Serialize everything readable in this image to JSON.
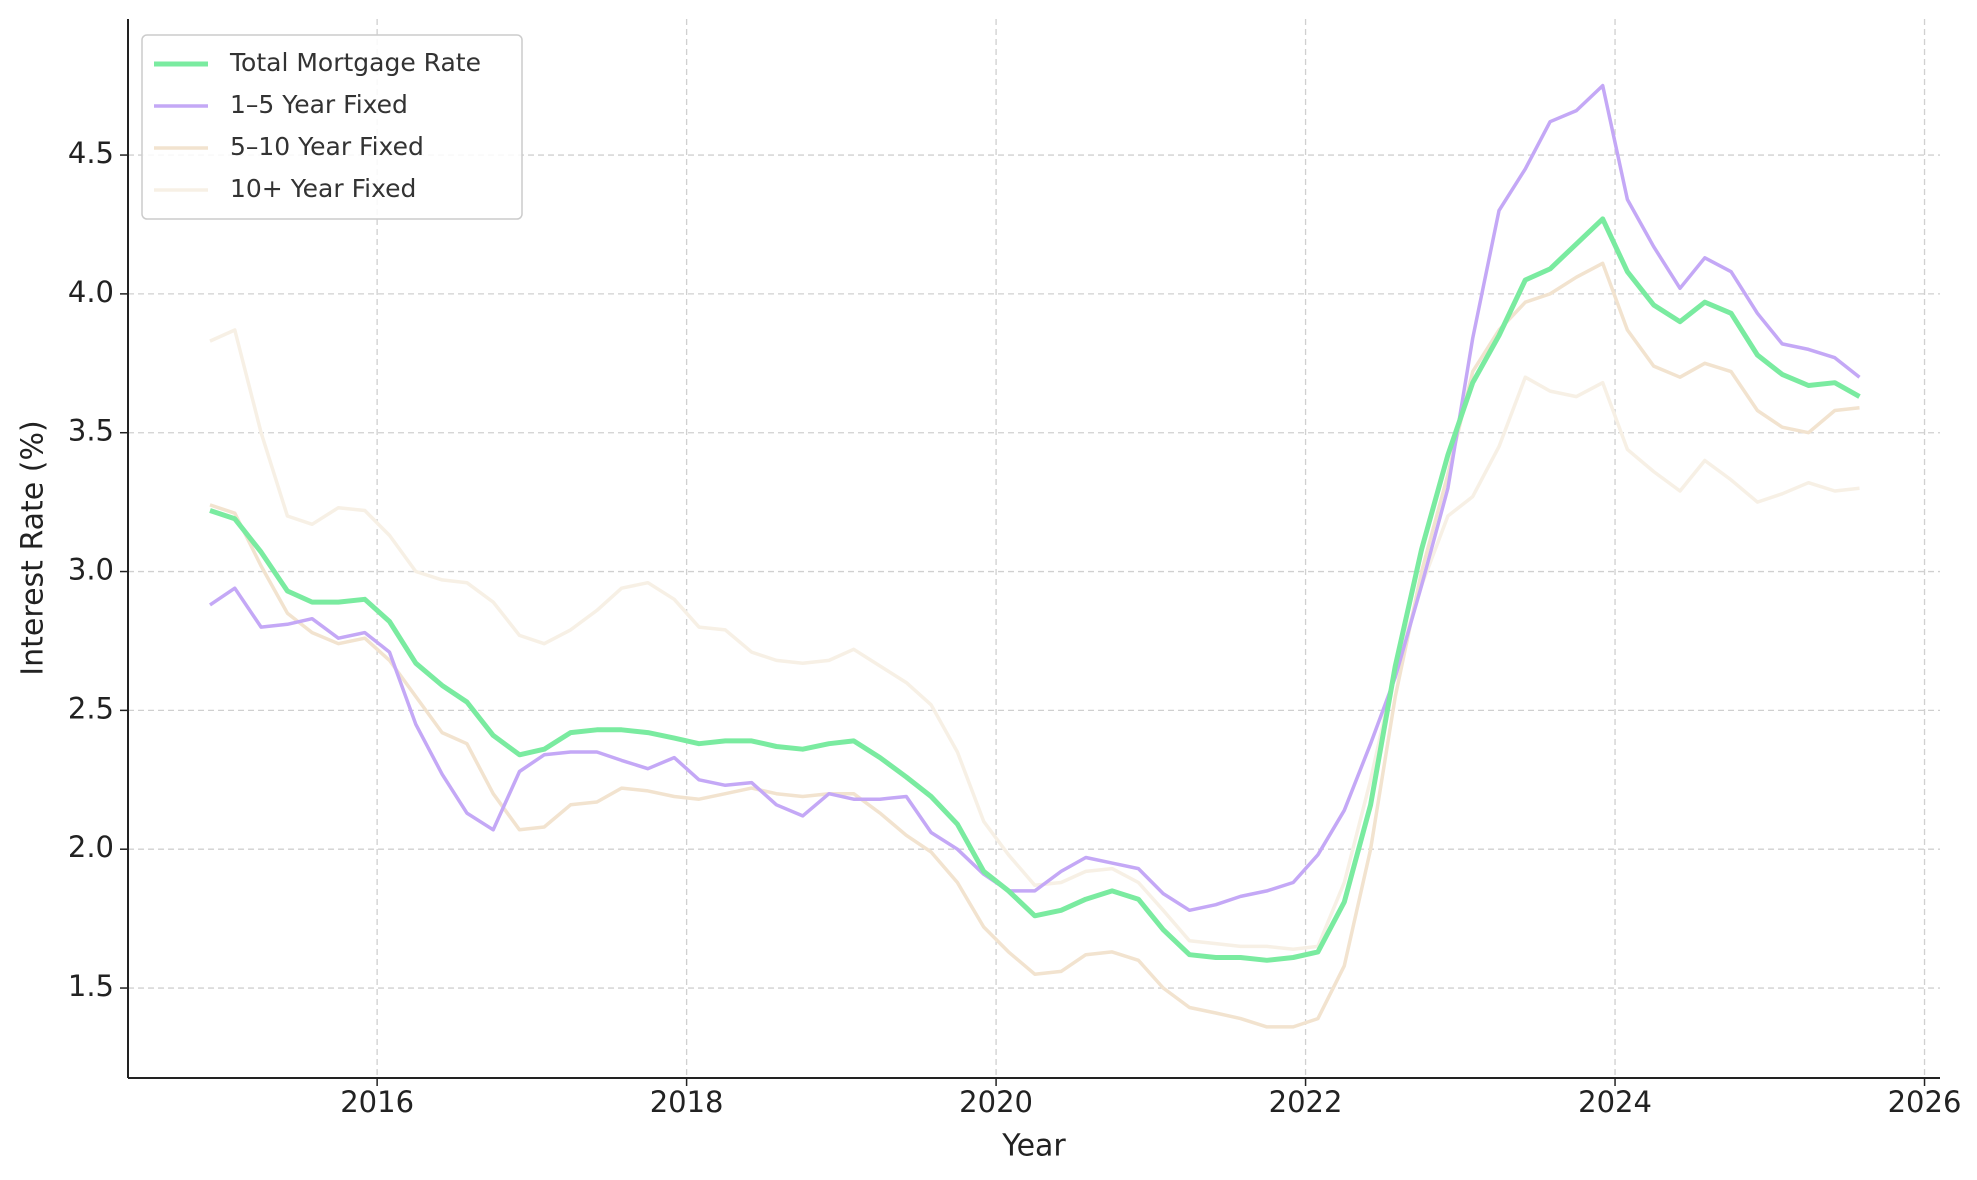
{
  "chart_data": {
    "type": "line",
    "x_label": "Year",
    "y_label": "Interest Rate (%)",
    "x": [
      2014.92,
      2015.08,
      2015.25,
      2015.42,
      2015.58,
      2015.75,
      2015.92,
      2016.08,
      2016.25,
      2016.42,
      2016.58,
      2016.75,
      2016.92,
      2017.08,
      2017.25,
      2017.42,
      2017.58,
      2017.75,
      2017.92,
      2018.08,
      2018.25,
      2018.42,
      2018.58,
      2018.75,
      2018.92,
      2019.08,
      2019.25,
      2019.42,
      2019.58,
      2019.75,
      2019.92,
      2020.08,
      2020.25,
      2020.42,
      2020.58,
      2020.75,
      2020.92,
      2021.08,
      2021.25,
      2021.42,
      2021.58,
      2021.75,
      2021.92,
      2022.08,
      2022.25,
      2022.42,
      2022.58,
      2022.75,
      2022.92,
      2023.08,
      2023.25,
      2023.42,
      2023.58,
      2023.75,
      2023.92,
      2024.08,
      2024.25,
      2024.42,
      2024.58,
      2024.75,
      2024.92,
      2025.08,
      2025.25,
      2025.42,
      2025.58
    ],
    "series": [
      {
        "name": "Total Mortgage Rate",
        "color": "#7aeba0",
        "width": 5,
        "values": [
          3.22,
          3.19,
          3.07,
          2.93,
          2.89,
          2.89,
          2.9,
          2.82,
          2.67,
          2.59,
          2.53,
          2.41,
          2.34,
          2.36,
          2.42,
          2.43,
          2.43,
          2.42,
          2.4,
          2.38,
          2.39,
          2.39,
          2.37,
          2.36,
          2.38,
          2.39,
          2.33,
          2.26,
          2.19,
          2.09,
          1.92,
          1.85,
          1.76,
          1.78,
          1.82,
          1.85,
          1.82,
          1.71,
          1.62,
          1.61,
          1.61,
          1.6,
          1.61,
          1.63,
          1.81,
          2.16,
          2.66,
          3.08,
          3.42,
          3.68,
          3.85,
          4.05,
          4.09,
          4.18,
          4.27,
          4.08,
          3.96,
          3.9,
          3.97,
          3.93,
          3.78,
          3.71,
          3.67,
          3.68,
          3.63
        ]
      },
      {
        "name": "1–5 Year Fixed",
        "color": "#c4a8f6",
        "width": 3.5,
        "values": [
          2.88,
          2.94,
          2.8,
          2.81,
          2.83,
          2.76,
          2.78,
          2.71,
          2.45,
          2.27,
          2.13,
          2.07,
          2.28,
          2.34,
          2.35,
          2.35,
          2.32,
          2.29,
          2.33,
          2.25,
          2.23,
          2.24,
          2.16,
          2.12,
          2.2,
          2.18,
          2.18,
          2.19,
          2.06,
          2.0,
          1.91,
          1.85,
          1.85,
          1.92,
          1.97,
          1.95,
          1.93,
          1.84,
          1.78,
          1.8,
          1.83,
          1.85,
          1.88,
          1.98,
          2.14,
          2.38,
          2.62,
          2.95,
          3.3,
          3.84,
          4.3,
          4.45,
          4.62,
          4.66,
          4.75,
          4.34,
          4.17,
          4.02,
          4.13,
          4.08,
          3.93,
          3.82,
          3.8,
          3.77,
          3.7
        ]
      },
      {
        "name": "5–10 Year Fixed",
        "color": "#f2e3cf",
        "width": 3.5,
        "values": [
          3.24,
          3.21,
          3.02,
          2.85,
          2.78,
          2.74,
          2.76,
          2.68,
          2.55,
          2.42,
          2.38,
          2.2,
          2.07,
          2.08,
          2.16,
          2.17,
          2.22,
          2.21,
          2.19,
          2.18,
          2.2,
          2.22,
          2.2,
          2.19,
          2.2,
          2.2,
          2.13,
          2.05,
          1.99,
          1.88,
          1.72,
          1.63,
          1.55,
          1.56,
          1.62,
          1.63,
          1.6,
          1.5,
          1.43,
          1.41,
          1.39,
          1.36,
          1.36,
          1.39,
          1.58,
          2.0,
          2.55,
          3.0,
          3.35,
          3.72,
          3.87,
          3.97,
          4.0,
          4.06,
          4.11,
          3.87,
          3.74,
          3.7,
          3.75,
          3.72,
          3.58,
          3.52,
          3.5,
          3.58,
          3.59
        ]
      },
      {
        "name": "10+ Year Fixed",
        "color": "#f7f0e5",
        "width": 3.5,
        "values": [
          3.83,
          3.87,
          3.5,
          3.2,
          3.17,
          3.23,
          3.22,
          3.13,
          3.0,
          2.97,
          2.96,
          2.89,
          2.77,
          2.74,
          2.79,
          2.86,
          2.94,
          2.96,
          2.9,
          2.8,
          2.79,
          2.71,
          2.68,
          2.67,
          2.68,
          2.72,
          2.66,
          2.6,
          2.52,
          2.35,
          2.1,
          1.98,
          1.87,
          1.88,
          1.92,
          1.93,
          1.88,
          1.78,
          1.67,
          1.66,
          1.65,
          1.65,
          1.64,
          1.65,
          1.88,
          2.25,
          2.65,
          2.95,
          3.2,
          3.27,
          3.45,
          3.7,
          3.65,
          3.63,
          3.68,
          3.44,
          3.36,
          3.29,
          3.4,
          3.33,
          3.25,
          3.28,
          3.32,
          3.29,
          3.3
        ]
      }
    ],
    "xlim": [
      2014.39,
      2026.1
    ],
    "xticks": [
      2016,
      2018,
      2020,
      2022,
      2024,
      2026
    ],
    "ylim": [
      1.176,
      4.99
    ],
    "yticks": [
      1.5,
      {
        "value": 2,
        "label": "2.0"
      },
      2.5,
      {
        "value": 3,
        "label": "3.0"
      },
      3.5,
      {
        "value": 4,
        "label": "4.0"
      },
      4.5
    ],
    "grid": true,
    "legend": "upper-left"
  }
}
